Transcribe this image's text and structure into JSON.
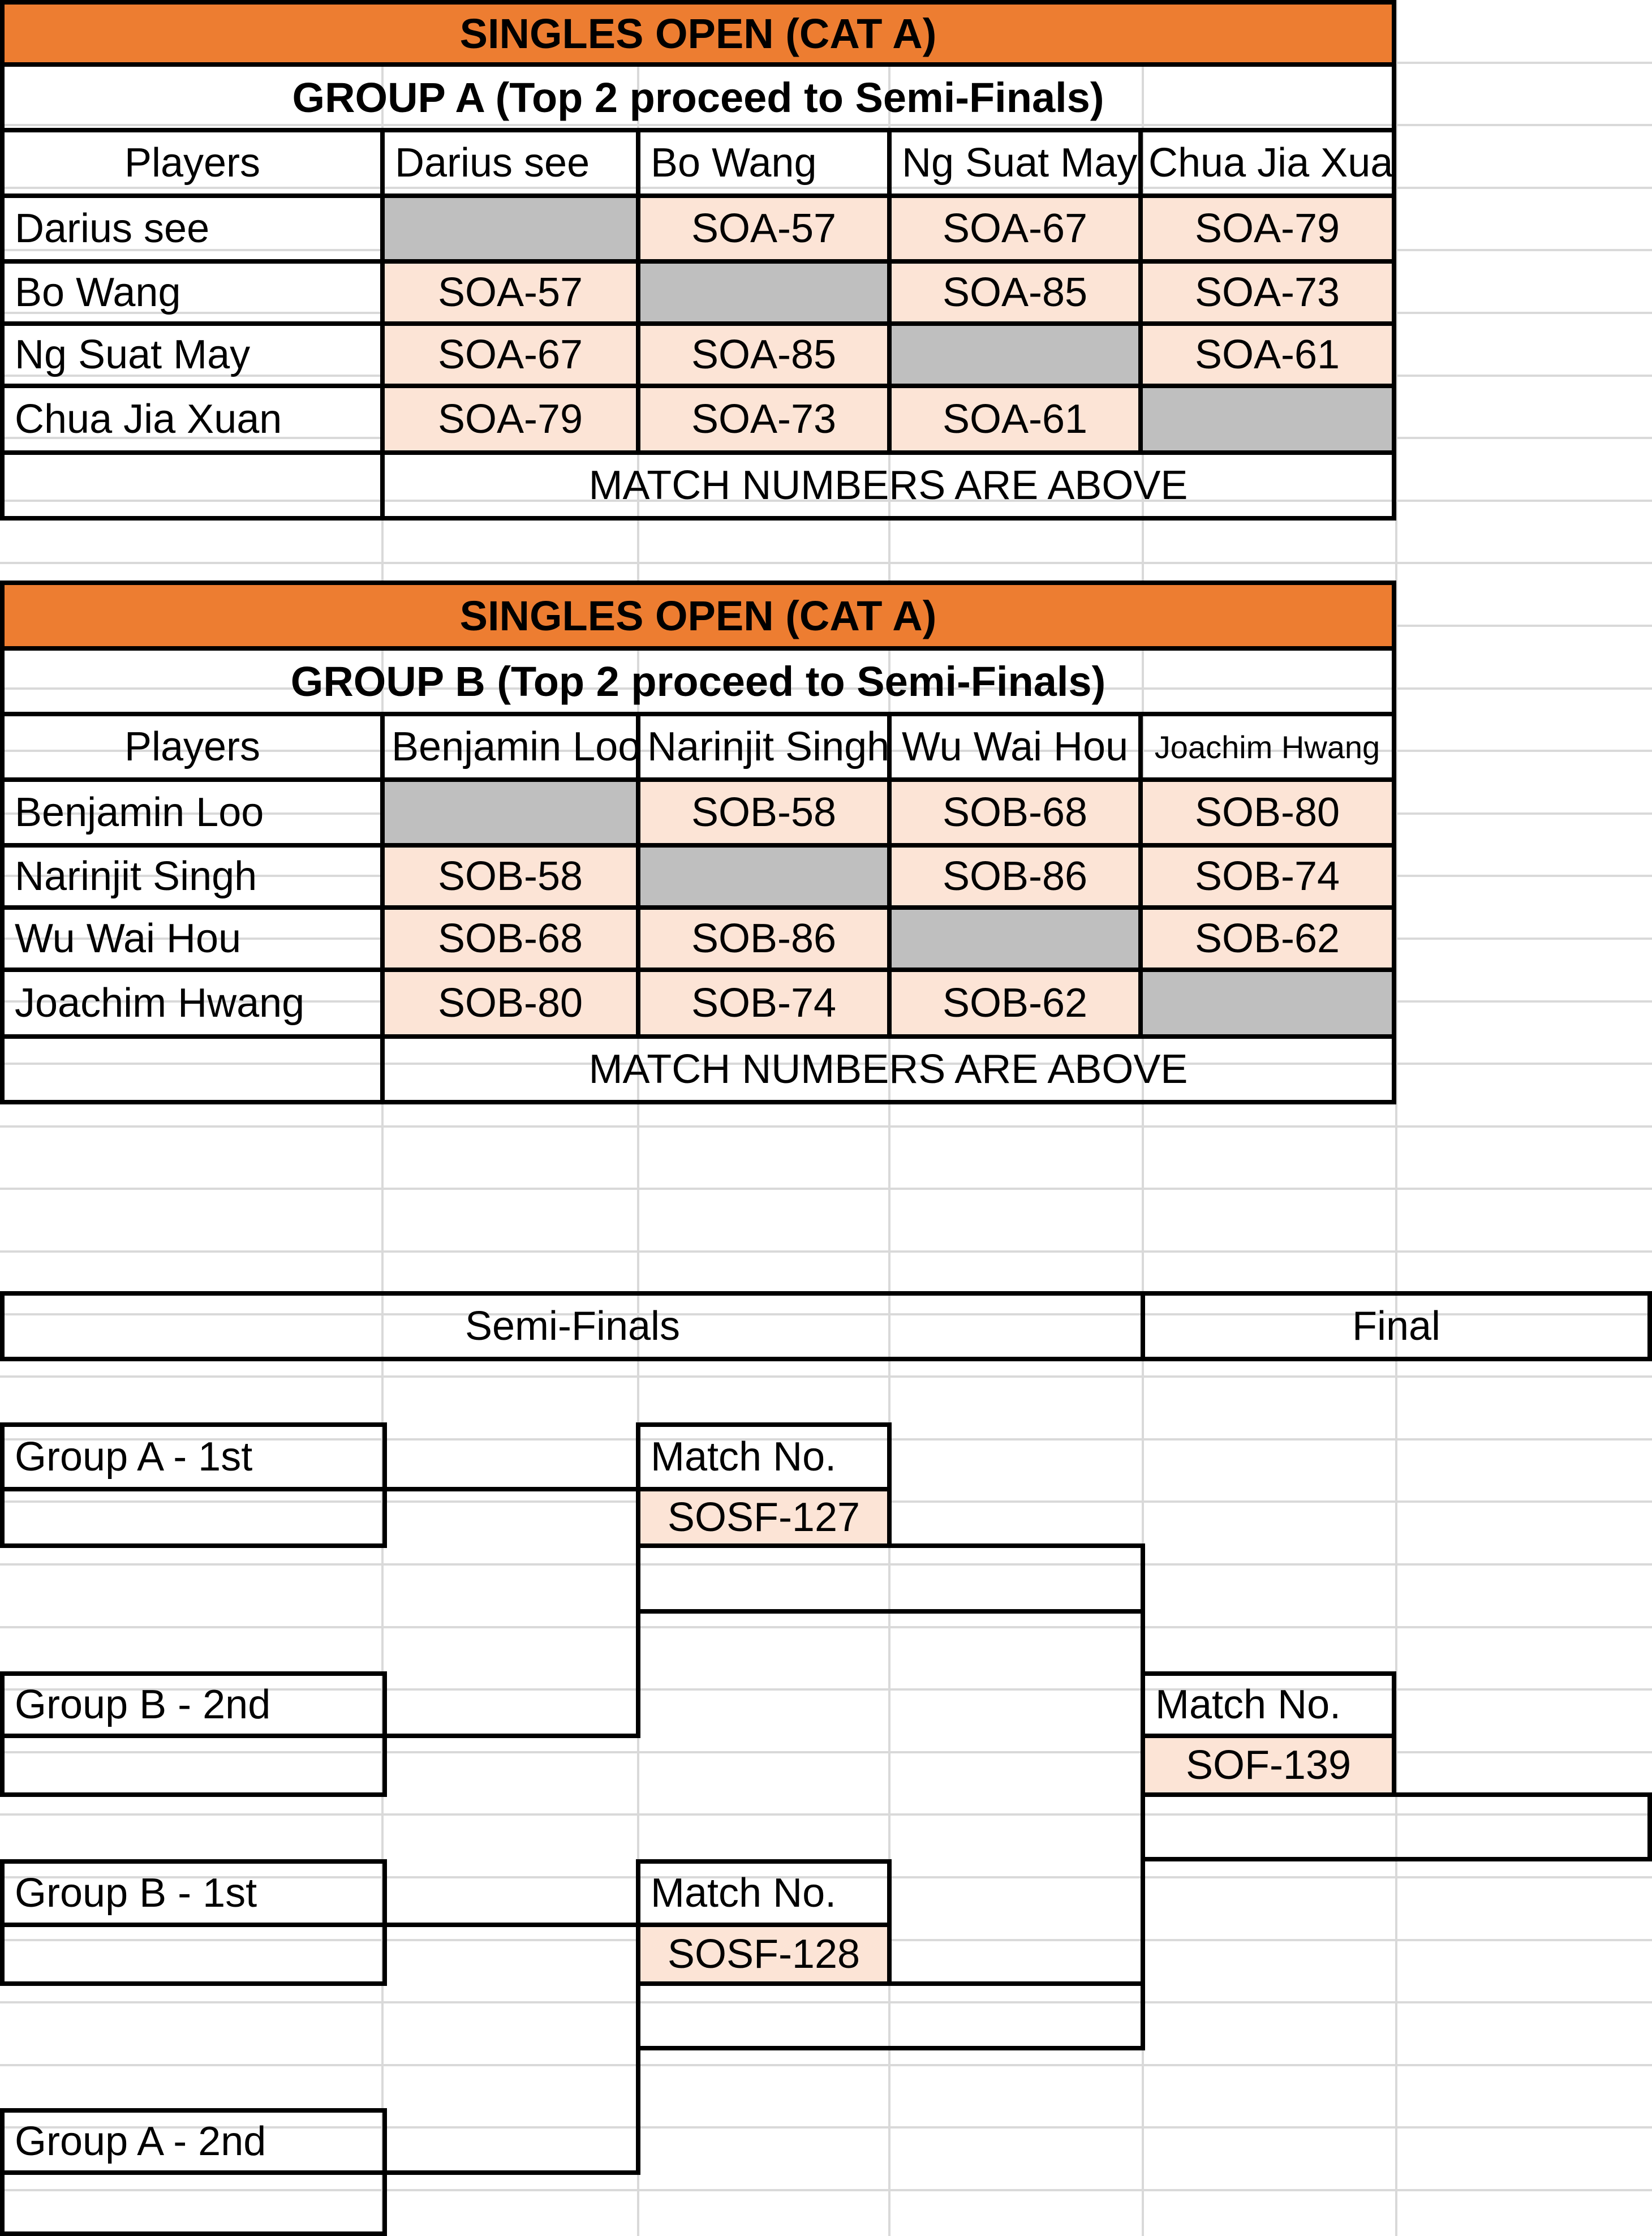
{
  "group_a": {
    "category": "SINGLES OPEN (CAT A)",
    "group_title": "GROUP A (Top 2 proceed to Semi-Finals)",
    "players_header": "Players",
    "players": [
      "Darius see",
      "Bo Wang",
      "Ng Suat May",
      "Chua Jia Xuan"
    ],
    "matrix": [
      [
        "",
        "SOA-57",
        "SOA-67",
        "SOA-79"
      ],
      [
        "SOA-57",
        "",
        "SOA-85",
        "SOA-73"
      ],
      [
        "SOA-67",
        "SOA-85",
        "",
        "SOA-61"
      ],
      [
        "SOA-79",
        "SOA-73",
        "SOA-61",
        ""
      ]
    ],
    "footer": "MATCH NUMBERS ARE ABOVE"
  },
  "group_b": {
    "category": "SINGLES OPEN (CAT A)",
    "group_title": "GROUP B (Top 2 proceed to Semi-Finals)",
    "players_header": "Players",
    "players": [
      "Benjamin Loo",
      "Narinjit Singh",
      "Wu Wai Hou",
      "Joachim Hwang"
    ],
    "matrix": [
      [
        "",
        "SOB-58",
        "SOB-68",
        "SOB-80"
      ],
      [
        "SOB-58",
        "",
        "SOB-86",
        "SOB-74"
      ],
      [
        "SOB-68",
        "SOB-86",
        "",
        "SOB-62"
      ],
      [
        "SOB-80",
        "SOB-74",
        "SOB-62",
        ""
      ]
    ],
    "footer": "MATCH NUMBERS ARE ABOVE"
  },
  "knockout": {
    "semi_header": "Semi-Finals",
    "final_header": "Final",
    "slots": [
      "Group A - 1st",
      "Group B - 2nd",
      "Group B - 1st",
      "Group A - 2nd"
    ],
    "match_label": "Match No.",
    "semi_1": "SOSF-127",
    "semi_2": "SOSF-128",
    "final": "SOF-139"
  },
  "colors": {
    "header_orange": "#ed7d31",
    "match_cell": "#fce4d6",
    "diagonal_grey": "#bfbfbf",
    "gridline": "#d9d9d9"
  }
}
